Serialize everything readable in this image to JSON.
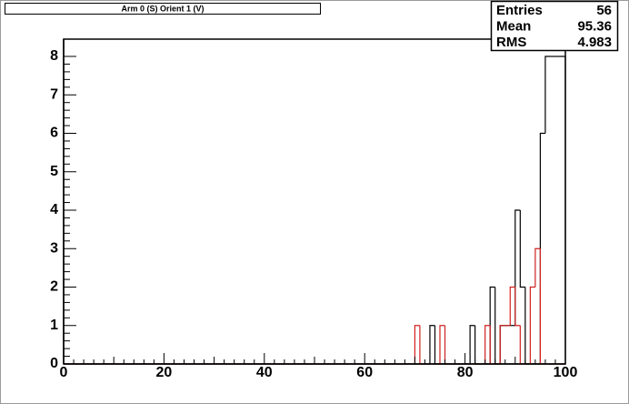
{
  "chart_data": {
    "type": "histogram",
    "title": "Arm 0 (S) Orient 1 (V)",
    "bins": [
      0,
      1,
      2,
      3,
      4,
      5,
      6,
      7,
      8,
      9,
      10,
      11,
      12,
      13,
      14,
      15,
      16,
      17,
      18,
      19,
      20,
      21,
      22,
      23,
      24,
      25,
      26,
      27,
      28,
      29,
      30,
      31,
      32,
      33,
      34,
      35,
      36,
      37,
      38,
      39,
      40,
      41,
      42,
      43,
      44,
      45,
      46,
      47,
      48,
      49,
      50,
      51,
      52,
      53,
      54,
      55,
      56,
      57,
      58,
      59,
      60,
      61,
      62,
      63,
      64,
      65,
      66,
      67,
      68,
      69,
      70,
      71,
      72,
      73,
      74,
      75,
      76,
      77,
      78,
      79,
      80,
      81,
      82,
      83,
      84,
      85,
      86,
      87,
      88,
      89,
      90,
      91,
      92,
      93,
      94,
      95,
      96,
      97,
      98,
      99,
      100
    ],
    "series": [
      {
        "color": "#000000",
        "values": [
          0,
          0,
          0,
          0,
          0,
          0,
          0,
          0,
          0,
          0,
          0,
          0,
          0,
          0,
          0,
          0,
          0,
          0,
          0,
          0,
          0,
          0,
          0,
          0,
          0,
          0,
          0,
          0,
          0,
          0,
          0,
          0,
          0,
          0,
          0,
          0,
          0,
          0,
          0,
          0,
          0,
          0,
          0,
          0,
          0,
          0,
          0,
          0,
          0,
          0,
          0,
          0,
          0,
          0,
          0,
          0,
          0,
          0,
          0,
          0,
          0,
          0,
          0,
          0,
          0,
          0,
          0,
          0,
          0,
          0,
          0,
          0,
          0,
          1,
          0,
          0,
          0,
          0,
          0,
          0,
          0,
          1,
          0,
          0,
          0,
          2,
          0,
          1,
          1,
          1,
          4,
          2,
          0,
          0,
          0,
          6,
          8,
          8,
          8,
          8
        ]
      },
      {
        "color": "#d02020",
        "values": [
          0,
          0,
          0,
          0,
          0,
          0,
          0,
          0,
          0,
          0,
          0,
          0,
          0,
          0,
          0,
          0,
          0,
          0,
          0,
          0,
          0,
          0,
          0,
          0,
          0,
          0,
          0,
          0,
          0,
          0,
          0,
          0,
          0,
          0,
          0,
          0,
          0,
          0,
          0,
          0,
          0,
          0,
          0,
          0,
          0,
          0,
          0,
          0,
          0,
          0,
          0,
          0,
          0,
          0,
          0,
          0,
          0,
          0,
          0,
          0,
          0,
          0,
          0,
          0,
          0,
          0,
          0,
          0,
          0,
          0,
          1,
          0,
          0,
          0,
          0,
          1,
          0,
          0,
          0,
          0,
          0,
          0,
          0,
          0,
          1,
          0,
          0,
          1,
          1,
          2,
          1,
          0,
          0,
          2,
          3,
          0,
          0,
          0,
          0,
          0
        ]
      }
    ],
    "xlim": [
      0,
      100
    ],
    "xticks": [
      0,
      20,
      40,
      60,
      80,
      100
    ],
    "ylim": [
      0,
      8.45
    ],
    "yticks": [
      0,
      1,
      2,
      3,
      4,
      5,
      6,
      7,
      8
    ],
    "stats": [
      {
        "label": "Entries",
        "value": 56
      },
      {
        "label": "Mean",
        "value": 95.36
      },
      {
        "label": "RMS",
        "value": 4.983
      }
    ]
  }
}
